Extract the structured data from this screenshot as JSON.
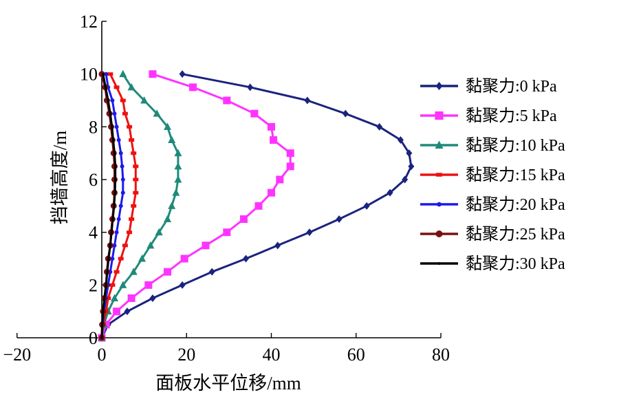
{
  "chart_data": {
    "type": "line",
    "xlabel": "面板水平位移/mm",
    "ylabel": "挡墙高度/m",
    "xlim": [
      -20,
      80
    ],
    "ylim": [
      0,
      12
    ],
    "xticks": [
      "−20",
      "0",
      "20",
      "40",
      "60",
      "80"
    ],
    "yticks": [
      "0",
      "2",
      "4",
      "6",
      "8",
      "10",
      "12"
    ],
    "grid": false,
    "legend_position": "right",
    "series": [
      {
        "name": "黏聚力:0 kPa",
        "color": "#1a237e",
        "marker": "diamond",
        "points": [
          [
            0,
            0
          ],
          [
            1.5,
            0.5
          ],
          [
            6,
            1
          ],
          [
            12,
            1.5
          ],
          [
            19,
            2
          ],
          [
            26,
            2.5
          ],
          [
            34,
            3
          ],
          [
            41.5,
            3.5
          ],
          [
            49,
            4
          ],
          [
            56,
            4.5
          ],
          [
            62.5,
            5
          ],
          [
            68,
            5.5
          ],
          [
            71.5,
            6
          ],
          [
            73,
            6.5
          ],
          [
            72.5,
            7
          ],
          [
            70.5,
            7.5
          ],
          [
            65.5,
            8
          ],
          [
            57.5,
            8.5
          ],
          [
            48.5,
            9
          ],
          [
            35,
            9.5
          ],
          [
            19,
            10
          ]
        ]
      },
      {
        "name": "黏聚力:5 kPa",
        "color": "#ff33ff",
        "marker": "square",
        "points": [
          [
            0,
            0
          ],
          [
            1,
            0.5
          ],
          [
            3.5,
            1
          ],
          [
            7,
            1.5
          ],
          [
            11,
            2
          ],
          [
            15.5,
            2.5
          ],
          [
            19.5,
            3
          ],
          [
            24.5,
            3.5
          ],
          [
            29.5,
            4
          ],
          [
            33.5,
            4.5
          ],
          [
            37,
            5
          ],
          [
            40,
            5.5
          ],
          [
            42,
            6
          ],
          [
            44.5,
            6.5
          ],
          [
            44.5,
            7
          ],
          [
            40.5,
            7.5
          ],
          [
            40,
            8
          ],
          [
            36,
            8.5
          ],
          [
            29.5,
            9
          ],
          [
            21.5,
            9.5
          ],
          [
            12,
            10
          ]
        ]
      },
      {
        "name": "黏聚力:10 kPa",
        "color": "#1f8a7a",
        "marker": "triangle",
        "points": [
          [
            0,
            0
          ],
          [
            0.5,
            0.5
          ],
          [
            1.5,
            1
          ],
          [
            3,
            1.5
          ],
          [
            5,
            2
          ],
          [
            7.5,
            2.5
          ],
          [
            9.5,
            3
          ],
          [
            11.5,
            3.5
          ],
          [
            13.5,
            4
          ],
          [
            15.5,
            4.5
          ],
          [
            16.5,
            5
          ],
          [
            17.5,
            5.5
          ],
          [
            18,
            6
          ],
          [
            18,
            6.5
          ],
          [
            18,
            7
          ],
          [
            16.5,
            7.5
          ],
          [
            15.5,
            8
          ],
          [
            13,
            8.5
          ],
          [
            10,
            9
          ],
          [
            7,
            9.5
          ],
          [
            5,
            10
          ]
        ]
      },
      {
        "name": "黏聚力:15 kPa",
        "color": "#ee1111",
        "marker": "bar",
        "points": [
          [
            0,
            0
          ],
          [
            0.3,
            0.5
          ],
          [
            1,
            1
          ],
          [
            1.5,
            1.5
          ],
          [
            2.5,
            2
          ],
          [
            3.5,
            2.5
          ],
          [
            4.5,
            3
          ],
          [
            5.5,
            3.5
          ],
          [
            6.5,
            4
          ],
          [
            7,
            4.5
          ],
          [
            7.5,
            5
          ],
          [
            8,
            5.5
          ],
          [
            8,
            6
          ],
          [
            8,
            6.5
          ],
          [
            7.5,
            7
          ],
          [
            7,
            7.5
          ],
          [
            6.5,
            8
          ],
          [
            5.5,
            8.5
          ],
          [
            5,
            9
          ],
          [
            3.5,
            9.5
          ],
          [
            2,
            10
          ]
        ]
      },
      {
        "name": "黏聚力:20 kPa",
        "color": "#1a1aee",
        "marker": "dot",
        "points": [
          [
            0,
            0
          ],
          [
            0.2,
            0.5
          ],
          [
            0.5,
            1
          ],
          [
            1,
            1.5
          ],
          [
            1.5,
            2
          ],
          [
            2,
            2.5
          ],
          [
            2.5,
            3
          ],
          [
            3,
            3.5
          ],
          [
            3.5,
            4
          ],
          [
            4,
            4.5
          ],
          [
            4.5,
            5
          ],
          [
            5,
            5.5
          ],
          [
            5,
            6
          ],
          [
            4.8,
            6.5
          ],
          [
            4.5,
            7
          ],
          [
            4,
            7.5
          ],
          [
            3.5,
            8
          ],
          [
            3,
            8.5
          ],
          [
            2.5,
            9
          ],
          [
            1.5,
            9.5
          ],
          [
            1,
            10
          ]
        ]
      },
      {
        "name": "黏聚力:25 kPa",
        "color": "#7a1010",
        "marker": "circle",
        "points": [
          [
            0,
            0
          ],
          [
            0.1,
            0.5
          ],
          [
            0.3,
            1
          ],
          [
            0.6,
            1.5
          ],
          [
            1,
            2
          ],
          [
            1.2,
            2.5
          ],
          [
            1.5,
            3
          ],
          [
            2,
            3.5
          ],
          [
            2.2,
            4
          ],
          [
            2.5,
            4.5
          ],
          [
            2.8,
            5
          ],
          [
            3,
            5.5
          ],
          [
            3,
            6
          ],
          [
            3,
            6.5
          ],
          [
            2.8,
            7
          ],
          [
            2.5,
            7.5
          ],
          [
            2.2,
            8
          ],
          [
            1.8,
            8.5
          ],
          [
            1.2,
            9
          ],
          [
            0.8,
            9.5
          ],
          [
            0,
            10
          ]
        ]
      },
      {
        "name": "黏聚力:30 kPa",
        "color": "#000000",
        "marker": "small",
        "points": [
          [
            0,
            0
          ],
          [
            0.1,
            0.5
          ],
          [
            0.3,
            1
          ],
          [
            0.6,
            1.5
          ],
          [
            1,
            2
          ],
          [
            1.3,
            2.5
          ],
          [
            1.6,
            3
          ],
          [
            2,
            3.5
          ],
          [
            2.3,
            4
          ],
          [
            2.6,
            4.5
          ],
          [
            2.9,
            5
          ],
          [
            3.1,
            5.5
          ],
          [
            3.2,
            6
          ],
          [
            3.2,
            6.5
          ],
          [
            3,
            7
          ],
          [
            2.7,
            7.5
          ],
          [
            2.4,
            8
          ],
          [
            2,
            8.5
          ],
          [
            1.5,
            9
          ],
          [
            0.9,
            9.5
          ],
          [
            0.3,
            10
          ]
        ]
      }
    ]
  }
}
